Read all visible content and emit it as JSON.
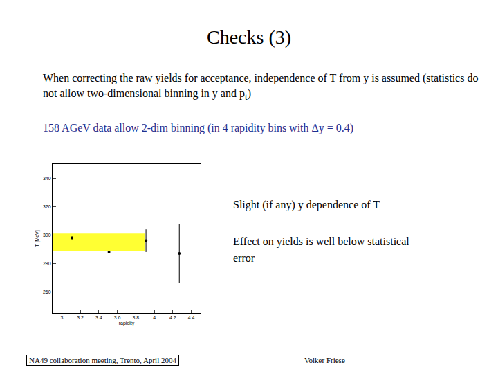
{
  "slide": {
    "title": "Checks (3)",
    "paragraph": [
      {
        "text": "When correcting the raw yields for acceptance, independence of  T from y is assumed (statistics do not allow two-dimensional binning in y and p"
      },
      {
        "text": "t",
        "sub": true
      },
      {
        "text": ")"
      }
    ],
    "highlight": "158 AGeV data allow 2-dim binning (in 4 rapidity bins with Δy = 0.4)",
    "notes": [
      "Slight (if any) y dependence of T",
      "Effect on yields is well below statistical error"
    ],
    "footer_left": "NA49 collaboration meeting, Trento, April 2004",
    "footer_right": "Volker Friese"
  },
  "chart_data": {
    "type": "scatter",
    "x_label": "rapidity",
    "y_label": "T [MeV]",
    "x": [
      3.11,
      3.51,
      3.91,
      4.27
    ],
    "values": [
      298,
      288,
      296,
      287
    ],
    "errors": [
      1,
      1,
      8,
      21
    ],
    "color": "#000000",
    "marker": "circle",
    "band": {
      "x": [
        2.9,
        3.9
      ],
      "y": [
        289,
        301
      ],
      "color": "#ffff33"
    },
    "xlim": [
      2.9,
      4.5
    ],
    "xticks": [
      3,
      3.2,
      3.4,
      3.6,
      3.8,
      4,
      4.2,
      4.4
    ],
    "ylim": [
      245,
      350
    ],
    "yticks": [
      260,
      280,
      300,
      320,
      340
    ],
    "grid": false
  }
}
